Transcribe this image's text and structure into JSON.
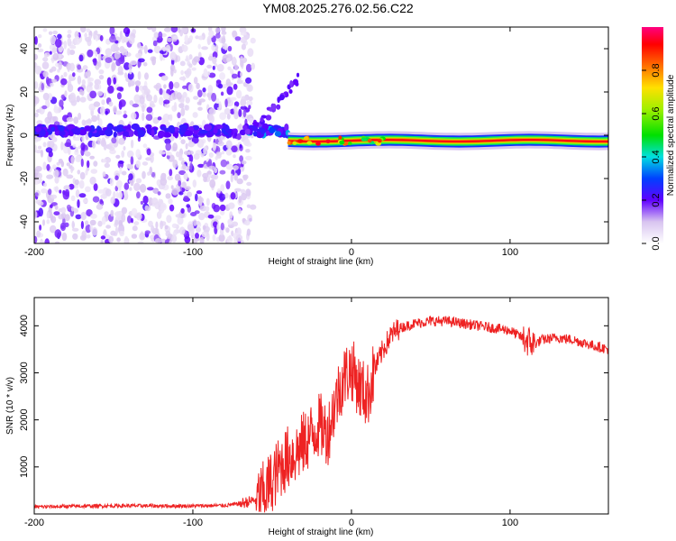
{
  "title": "YM08.2025.276.02.56.C22",
  "chart_data": [
    {
      "type": "heatmap",
      "xlabel": "Height of straight line (km)",
      "ylabel": "Frequency (Hz)",
      "xlim": [
        -200,
        162
      ],
      "ylim": [
        -50,
        50
      ],
      "x_ticks": [
        "-200",
        "-100",
        "0",
        "100"
      ],
      "y_ticks": [
        "-40",
        "-20",
        "0",
        "20",
        "40"
      ],
      "colorbar": {
        "label": "Normalized spectral amplitude",
        "range": [
          0,
          1
        ],
        "ticks": [
          "0.0",
          "0.2",
          "0.4",
          "0.6",
          "0.8"
        ]
      },
      "features": [
        {
          "region": "scattered noise",
          "x": [
            -200,
            -70
          ],
          "freq": [
            -50,
            50
          ],
          "amplitude": 0.1
        },
        {
          "region": "noisy line",
          "x": [
            -200,
            -40
          ],
          "freq": [
            0,
            4
          ],
          "amplitude": 0.2
        },
        {
          "region": "chirp arm",
          "x": [
            -75,
            -32
          ],
          "freq": [
            0,
            28
          ],
          "amplitude": 0.15
        },
        {
          "region": "strong line",
          "x": [
            -40,
            162
          ],
          "freq": [
            -4,
            -1
          ],
          "amplitude": 1.0
        }
      ]
    },
    {
      "type": "line",
      "xlabel": "Height of straight line (km)",
      "ylabel": "SNR (10 * v/v)",
      "xlim": [
        -200,
        162
      ],
      "ylim": [
        0,
        4600
      ],
      "x_ticks": [
        "-200",
        "-100",
        "0",
        "100"
      ],
      "y_ticks": [
        "1000",
        "2000",
        "3000",
        "4000"
      ],
      "series": [
        {
          "color": "#ee2222",
          "x": [
            -200,
            -180,
            -160,
            -140,
            -120,
            -100,
            -80,
            -70,
            -60,
            -55,
            -50,
            -45,
            -40,
            -35,
            -30,
            -25,
            -20,
            -15,
            -10,
            -5,
            0,
            5,
            10,
            15,
            20,
            25,
            30,
            40,
            50,
            60,
            70,
            80,
            90,
            100,
            105,
            110,
            115,
            120,
            130,
            140,
            150,
            162
          ],
          "y": [
            150,
            160,
            170,
            175,
            170,
            170,
            180,
            220,
            300,
            450,
            700,
            1000,
            1200,
            1300,
            1500,
            1700,
            1900,
            1700,
            2400,
            2900,
            3100,
            2700,
            2500,
            3100,
            3500,
            3800,
            3950,
            4050,
            4100,
            4100,
            4050,
            4000,
            3950,
            3900,
            3800,
            3700,
            3600,
            3700,
            3750,
            3700,
            3600,
            3500
          ]
        }
      ]
    }
  ]
}
